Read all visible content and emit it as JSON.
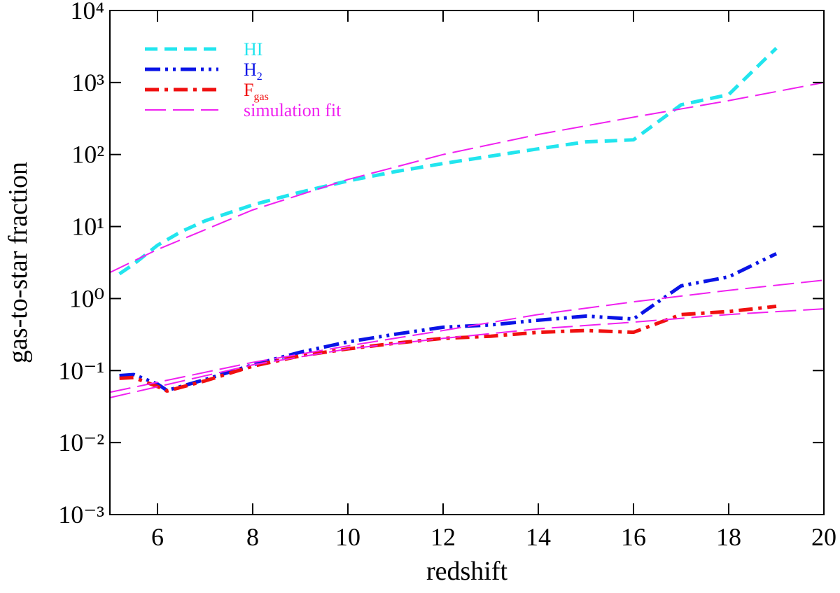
{
  "chart_data": {
    "type": "line",
    "xlabel": "redshift",
    "ylabel": "gas-to-star fraction",
    "xlim": [
      5,
      20
    ],
    "xticks": [
      6,
      8,
      10,
      12,
      14,
      16,
      18,
      20
    ],
    "ylim": [
      0.001,
      10000
    ],
    "yscale": "log",
    "yticks": [
      {
        "value": 0.001,
        "label": "10⁻³"
      },
      {
        "value": 0.01,
        "label": "10⁻²"
      },
      {
        "value": 0.1,
        "label": "10⁻¹"
      },
      {
        "value": 1,
        "label": "10⁰"
      },
      {
        "value": 10,
        "label": "10¹"
      },
      {
        "value": 100,
        "label": "10²"
      },
      {
        "value": 1000,
        "label": "10³"
      },
      {
        "value": 10000,
        "label": "10⁴"
      }
    ],
    "legend": "upper left",
    "series": [
      {
        "name": "HI",
        "color": "#22e5ee",
        "style": "dashed",
        "x": [
          5.2,
          5.5,
          6,
          6.5,
          7,
          8,
          9,
          10,
          11,
          12,
          13,
          14,
          15,
          16,
          17,
          18,
          19
        ],
        "values": [
          2.2,
          3,
          5.5,
          8.5,
          12,
          20,
          30,
          43,
          58,
          75,
          95,
          120,
          150,
          160,
          490,
          680,
          3000
        ]
      },
      {
        "name": "H",
        "subscript": "2",
        "color": "#0a14e6",
        "style": "dash-dot-dot",
        "x": [
          5.2,
          5.5,
          6,
          6.2,
          7,
          8,
          9,
          10,
          11,
          12,
          13,
          14,
          15,
          16,
          17,
          18,
          19
        ],
        "values": [
          0.085,
          0.088,
          0.065,
          0.053,
          0.075,
          0.12,
          0.18,
          0.25,
          0.32,
          0.4,
          0.43,
          0.5,
          0.57,
          0.52,
          1.5,
          2.0,
          4.2
        ]
      },
      {
        "name": "F",
        "subscript": "gas",
        "color": "#f01010",
        "style": "dash-dot",
        "x": [
          5.2,
          5.5,
          6,
          6.2,
          7,
          8,
          9,
          10,
          11,
          12,
          13,
          14,
          15,
          16,
          17,
          18,
          19
        ],
        "values": [
          0.078,
          0.08,
          0.06,
          0.052,
          0.072,
          0.115,
          0.16,
          0.2,
          0.24,
          0.28,
          0.3,
          0.34,
          0.36,
          0.34,
          0.6,
          0.66,
          0.78
        ]
      },
      {
        "name": "simulation fit",
        "color": "#f020f0",
        "style": "long-dash",
        "x": [
          5,
          6,
          8,
          10,
          12,
          14,
          16,
          18,
          20
        ],
        "values": [
          2.3,
          4.8,
          17,
          45,
          100,
          190,
          330,
          560,
          1000
        ]
      },
      {
        "name": "simulation fit",
        "color": "#f020f0",
        "style": "long-dash",
        "x": [
          5,
          8,
          10,
          12,
          14,
          16,
          18,
          20
        ],
        "values": [
          0.05,
          0.13,
          0.22,
          0.36,
          0.6,
          0.9,
          1.3,
          1.8
        ]
      },
      {
        "name": "simulation fit",
        "color": "#f020f0",
        "style": "long-dash",
        "x": [
          5,
          8,
          10,
          12,
          14,
          16,
          18,
          20
        ],
        "values": [
          0.042,
          0.12,
          0.2,
          0.28,
          0.38,
          0.47,
          0.6,
          0.72
        ]
      }
    ]
  }
}
